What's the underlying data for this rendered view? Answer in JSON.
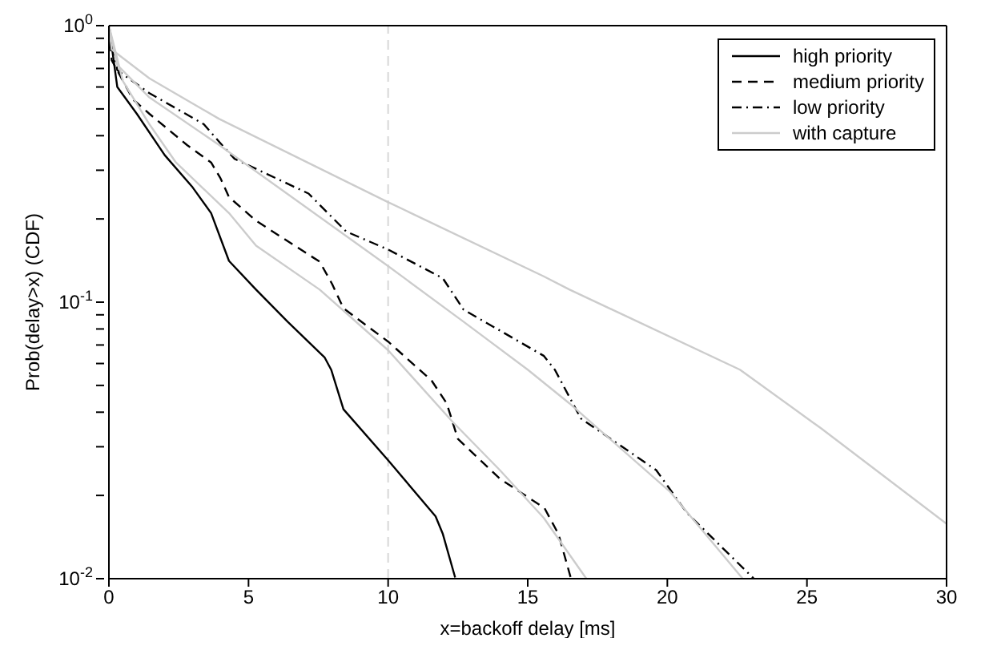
{
  "chart_data": {
    "type": "line",
    "xlabel": "x=backoff delay [ms]",
    "ylabel": "Prob(delay>x) (CDF)",
    "xlim": [
      0,
      30
    ],
    "xticks": [
      0,
      5,
      10,
      15,
      20,
      25,
      30
    ],
    "ylim": [
      0.01,
      1
    ],
    "yticks": [
      {
        "value": 0.01,
        "label": "10$^{-2}$"
      },
      {
        "value": 0.02,
        "label": null
      },
      {
        "value": 0.03,
        "label": null
      },
      {
        "value": 0.04,
        "label": null
      },
      {
        "value": 0.05,
        "label": null
      },
      {
        "value": 0.06,
        "label": null
      },
      {
        "value": 0.07,
        "label": null
      },
      {
        "value": 0.08,
        "label": null
      },
      {
        "value": 0.09,
        "label": null
      },
      {
        "value": 0.1,
        "label": "10$^{-1}$"
      },
      {
        "value": 0.2,
        "label": null
      },
      {
        "value": 0.3,
        "label": null
      },
      {
        "value": 0.4,
        "label": null
      },
      {
        "value": 0.5,
        "label": null
      },
      {
        "value": 0.6,
        "label": null
      },
      {
        "value": 0.7,
        "label": null
      },
      {
        "value": 0.8,
        "label": null
      },
      {
        "value": 0.9,
        "label": null
      },
      {
        "value": 1,
        "label": "10$^{0}$"
      }
    ],
    "log": "y",
    "legend": "top right",
    "marker": "none",
    "ref_lines": [
      {
        "axis": "x",
        "value": 10,
        "label": null,
        "color": "#dddddd",
        "line_style": "dashed"
      }
    ],
    "series": [
      {
        "name": "high priority",
        "color": "#000000",
        "line_style": "solid",
        "x": [
          0,
          0.3,
          1,
          2,
          3,
          3.66,
          4.3,
          5.27,
          6.4,
          7.73,
          7.96,
          8.4,
          10,
          11.7,
          11.96,
          12.4
        ],
        "values": [
          1,
          0.6,
          0.48,
          0.34,
          0.26,
          0.21,
          0.141,
          0.111,
          0.085,
          0.063,
          0.057,
          0.041,
          0.0268,
          0.0168,
          0.0145,
          0.0101
        ]
      },
      {
        "name": "medium priority",
        "color": "#000000",
        "line_style": "dashed",
        "x": [
          0,
          0.1,
          0.87,
          1.45,
          2.8,
          3.66,
          4,
          4.3,
          5.27,
          7.55,
          8,
          8.4,
          10,
          11.56,
          12.1,
          12.5,
          14,
          15.6,
          16.1,
          16.55
        ],
        "values": [
          1,
          0.75,
          0.54,
          0.48,
          0.37,
          0.32,
          0.28,
          0.24,
          0.197,
          0.14,
          0.116,
          0.095,
          0.072,
          0.052,
          0.043,
          0.032,
          0.023,
          0.018,
          0.0145,
          0.01
        ]
      },
      {
        "name": "low priority",
        "color": "#000000",
        "line_style": "dashdot",
        "x": [
          0,
          0.3,
          1.45,
          3.4,
          3.95,
          4.5,
          7.15,
          8.5,
          10,
          11.96,
          12.7,
          15.57,
          15.97,
          16.9,
          19.6,
          20.7,
          23.1
        ],
        "values": [
          1,
          0.69,
          0.57,
          0.44,
          0.38,
          0.33,
          0.247,
          0.18,
          0.155,
          0.122,
          0.094,
          0.064,
          0.057,
          0.038,
          0.0247,
          0.0173,
          0.01
        ]
      },
      {
        "name": "with capture",
        "color": "#cccccc",
        "line_style": "solid",
        "x": [
          0,
          0.1,
          1.45,
          3.95,
          9.96,
          15.57,
          16.5,
          22.6,
          25.5,
          30
        ],
        "values": [
          1,
          0.82,
          0.645,
          0.46,
          0.231,
          0.124,
          0.111,
          0.057,
          0.035,
          0.0158
        ]
      },
      {
        "color": "#cccccc",
        "line_style": "solid",
        "x": [
          0,
          0.3,
          1.45,
          3.95,
          9.96,
          12.7,
          15,
          16.5,
          20.1,
          22.7
        ],
        "values": [
          1,
          0.72,
          0.55,
          0.37,
          0.136,
          0.085,
          0.057,
          0.043,
          0.0206,
          0.01
        ]
      },
      {
        "color": "#cccccc",
        "line_style": "solid",
        "x": [
          0,
          0.5,
          1.45,
          2.4,
          4.3,
          5.27,
          7.55,
          10,
          12.3,
          14,
          15.57,
          17.1
        ],
        "values": [
          1,
          0.63,
          0.44,
          0.32,
          0.21,
          0.16,
          0.111,
          0.067,
          0.037,
          0.0247,
          0.0166,
          0.01
        ]
      }
    ]
  }
}
